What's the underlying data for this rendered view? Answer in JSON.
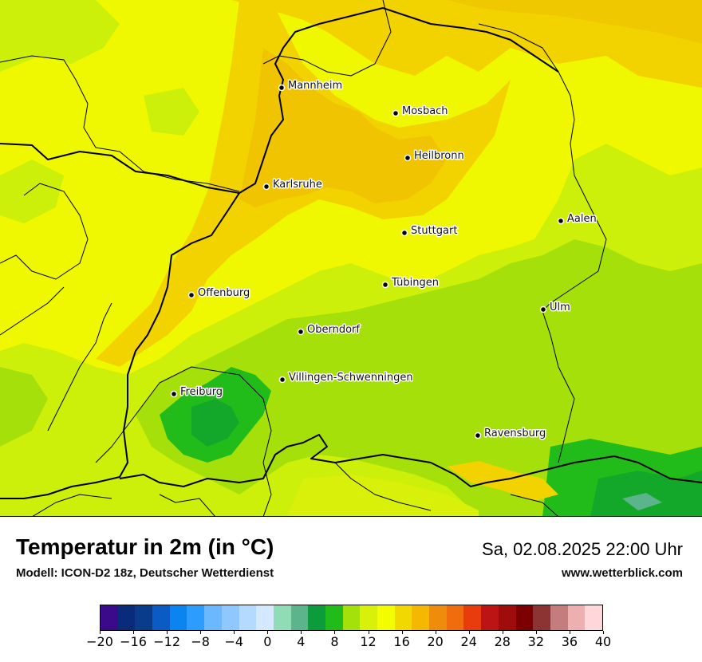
{
  "title": "Temperatur in 2m (in °C)",
  "model": "Modell: ICON-D2 18z, Deutscher Wetterdienst",
  "datetime": "Sa, 02.08.2025 22:00 Uhr",
  "website": "www.wetterblick.com",
  "cities": [
    {
      "name": "Mannheim"
    },
    {
      "name": "Mosbach"
    },
    {
      "name": "Heilbronn"
    },
    {
      "name": "Karlsruhe"
    },
    {
      "name": "Aalen"
    },
    {
      "name": "Stuttgart"
    },
    {
      "name": "Tübingen"
    },
    {
      "name": "Offenburg"
    },
    {
      "name": "Ulm"
    },
    {
      "name": "Oberndorf"
    },
    {
      "name": "Villingen-Schwenningen"
    },
    {
      "name": "Freiburg"
    },
    {
      "name": "Ravensburg"
    }
  ],
  "legend": {
    "ticks": [
      "−20",
      "−16",
      "−12",
      "−8",
      "−4",
      "0",
      "4",
      "8",
      "12",
      "16",
      "20",
      "24",
      "28",
      "32",
      "36",
      "40"
    ],
    "colors": [
      "#3a0a8a",
      "#0a2a7a",
      "#0a3c8c",
      "#0a5cc4",
      "#0a84f0",
      "#2c9cff",
      "#6cb8ff",
      "#8ec8ff",
      "#b4daff",
      "#d4e8ff",
      "#90dcb4",
      "#5cb48c",
      "#0c9c3c",
      "#22bc1a",
      "#a4e00a",
      "#d8f00a",
      "#f4fc00",
      "#f0d800",
      "#f4b800",
      "#f08c0c",
      "#f06c0c",
      "#e83c0c",
      "#bc1414",
      "#a00c0c",
      "#7c0000",
      "#8c3434",
      "#c47c7c",
      "#ecb0b0",
      "#ffd8dc"
    ]
  }
}
